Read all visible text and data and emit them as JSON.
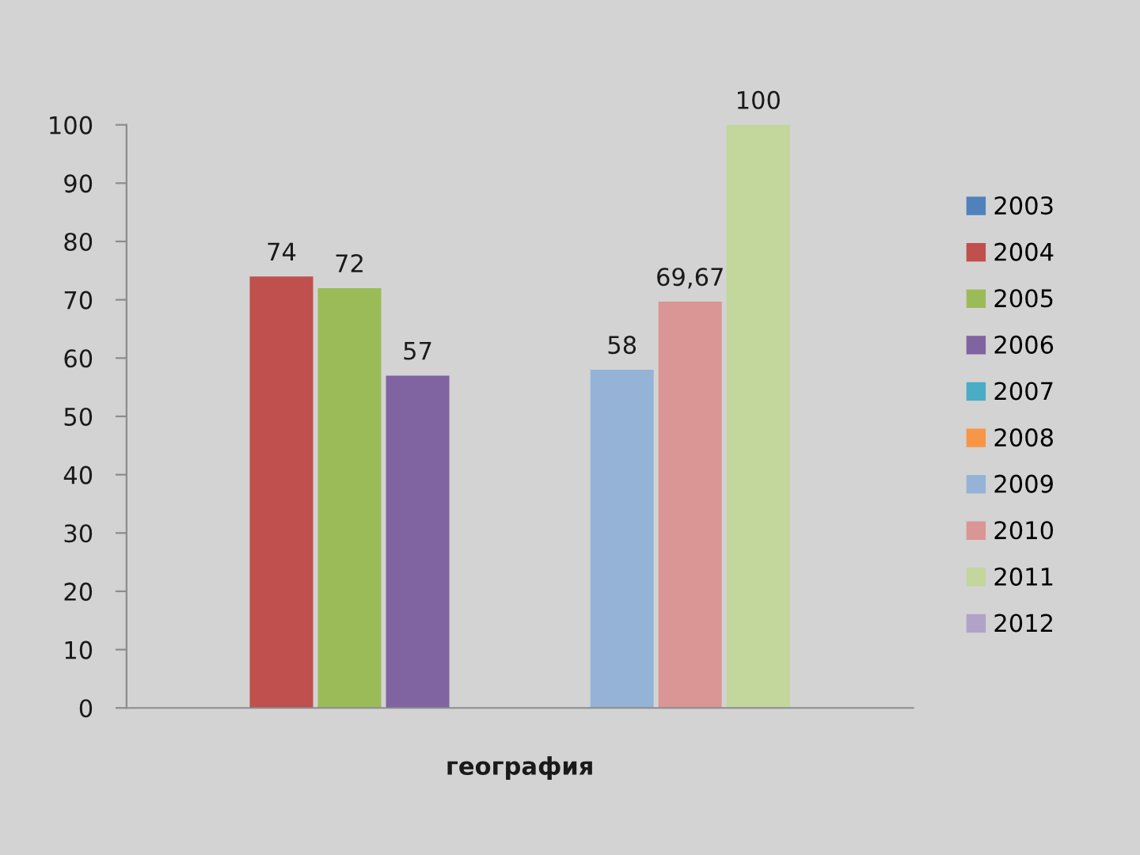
{
  "chart_data": {
    "type": "bar",
    "categories": [
      "география"
    ],
    "ylim": [
      0,
      100
    ],
    "yticks": [
      0,
      10,
      20,
      30,
      40,
      50,
      60,
      70,
      80,
      90,
      100
    ],
    "grid": false,
    "legend": "right",
    "series": [
      {
        "name": "2003",
        "color": "#4f81bd",
        "values": [
          null
        ],
        "value_labels": [
          null
        ]
      },
      {
        "name": "2004",
        "color": "#c0504d",
        "values": [
          74
        ],
        "value_labels": [
          "74"
        ]
      },
      {
        "name": "2005",
        "color": "#9bbb59",
        "values": [
          72
        ],
        "value_labels": [
          "72"
        ]
      },
      {
        "name": "2006",
        "color": "#8064a2",
        "values": [
          57
        ],
        "value_labels": [
          "57"
        ]
      },
      {
        "name": "2007",
        "color": "#4bacc6",
        "values": [
          null
        ],
        "value_labels": [
          null
        ]
      },
      {
        "name": "2008",
        "color": "#f79646",
        "values": [
          null
        ],
        "value_labels": [
          null
        ]
      },
      {
        "name": "2009",
        "color": "#95b3d7",
        "values": [
          58
        ],
        "value_labels": [
          "58"
        ]
      },
      {
        "name": "2010",
        "color": "#d99694",
        "values": [
          69.67
        ],
        "value_labels": [
          "69,67"
        ]
      },
      {
        "name": "2011",
        "color": "#c3d69b",
        "values": [
          100
        ],
        "value_labels": [
          "100"
        ]
      },
      {
        "name": "2012",
        "color": "#b2a2c7",
        "values": [
          null
        ],
        "value_labels": [
          null
        ]
      }
    ]
  }
}
